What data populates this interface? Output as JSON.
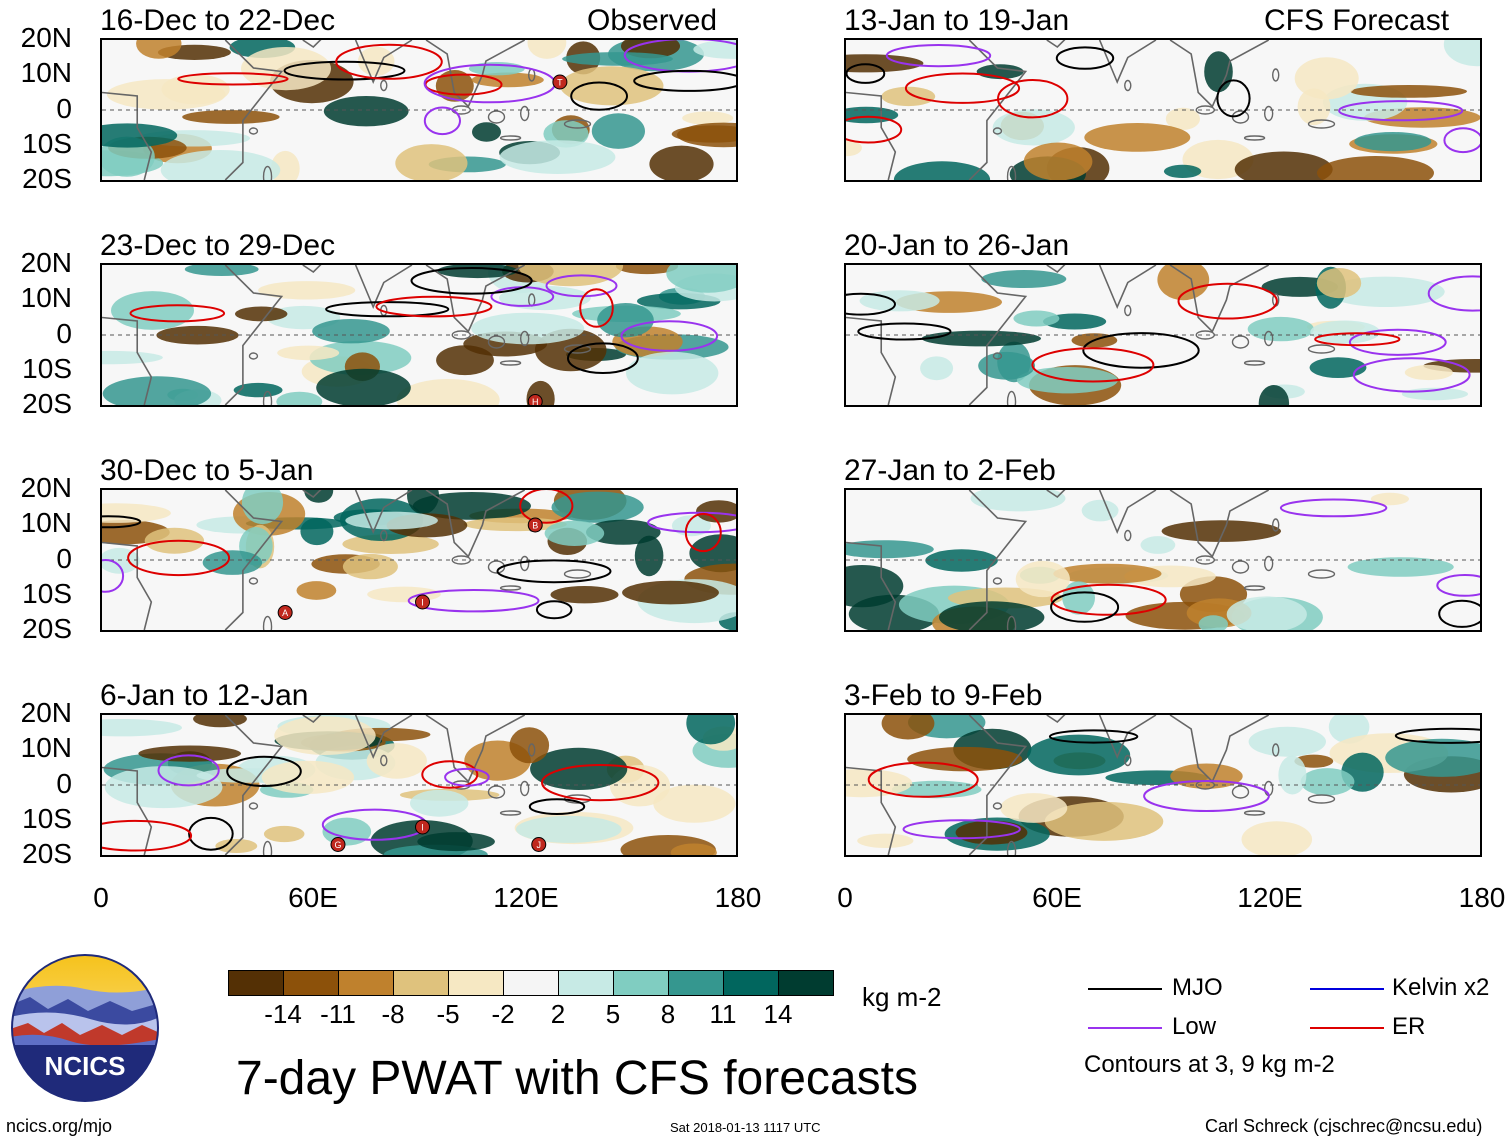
{
  "header": {
    "observed_label": "Observed",
    "forecast_label": "CFS Forecast"
  },
  "panels_left": [
    {
      "title": "16-Dec to 22-Dec"
    },
    {
      "title": "23-Dec to 29-Dec"
    },
    {
      "title": "30-Dec to 5-Jan"
    },
    {
      "title": "6-Jan to 12-Jan"
    }
  ],
  "panels_right": [
    {
      "title": "13-Jan to 19-Jan"
    },
    {
      "title": "20-Jan to 26-Jan"
    },
    {
      "title": "27-Jan to 2-Feb"
    },
    {
      "title": "3-Feb to 9-Feb"
    }
  ],
  "lat_labels": [
    "20N",
    "10N",
    "0",
    "10S",
    "20S"
  ],
  "lon_labels": [
    "0",
    "60E",
    "120E",
    "180"
  ],
  "colorbar": {
    "ticks": [
      "-14",
      "-11",
      "-8",
      "-5",
      "-2",
      "2",
      "5",
      "8",
      "11",
      "14"
    ],
    "colors": [
      "#543005",
      "#8c510a",
      "#bf812d",
      "#dfc27d",
      "#f6e8c3",
      "#f5f5f5",
      "#c7eae5",
      "#80cdc1",
      "#35978f",
      "#01665e",
      "#003c30"
    ],
    "units": "kg m-2"
  },
  "title": "7-day PWAT with CFS forecasts",
  "legend": {
    "items": [
      {
        "label": "MJO",
        "color": "#000000"
      },
      {
        "label": "Kelvin x2",
        "color": "#0000dd"
      },
      {
        "label": "Low",
        "color": "#9933ee"
      },
      {
        "label": "ER",
        "color": "#dd0000"
      }
    ],
    "note": "Contours at 3, 9 kg m-2"
  },
  "logo_text": "NCICS",
  "footer": {
    "left": "ncics.org/mjo",
    "center": "Sat 2018-01-13 1117 UTC",
    "right": "Carl Schreck (cjschrec@ncsu.edu)"
  },
  "storm_markers": [
    {
      "panel": 0,
      "lon": 130,
      "lat": 8,
      "letter": "T"
    },
    {
      "panel": 1,
      "lon": 123,
      "lat": -19,
      "letter": "H"
    },
    {
      "panel": 2,
      "lon": 123,
      "lat": 10,
      "letter": "B"
    },
    {
      "panel": 2,
      "lon": 52,
      "lat": -15,
      "letter": "A"
    },
    {
      "panel": 2,
      "lon": 91,
      "lat": -12,
      "letter": "I"
    },
    {
      "panel": 3,
      "lon": 67,
      "lat": -17,
      "letter": "G"
    },
    {
      "panel": 3,
      "lon": 91,
      "lat": -12,
      "letter": "I"
    },
    {
      "panel": 3,
      "lon": 124,
      "lat": -17,
      "letter": "J"
    }
  ]
}
